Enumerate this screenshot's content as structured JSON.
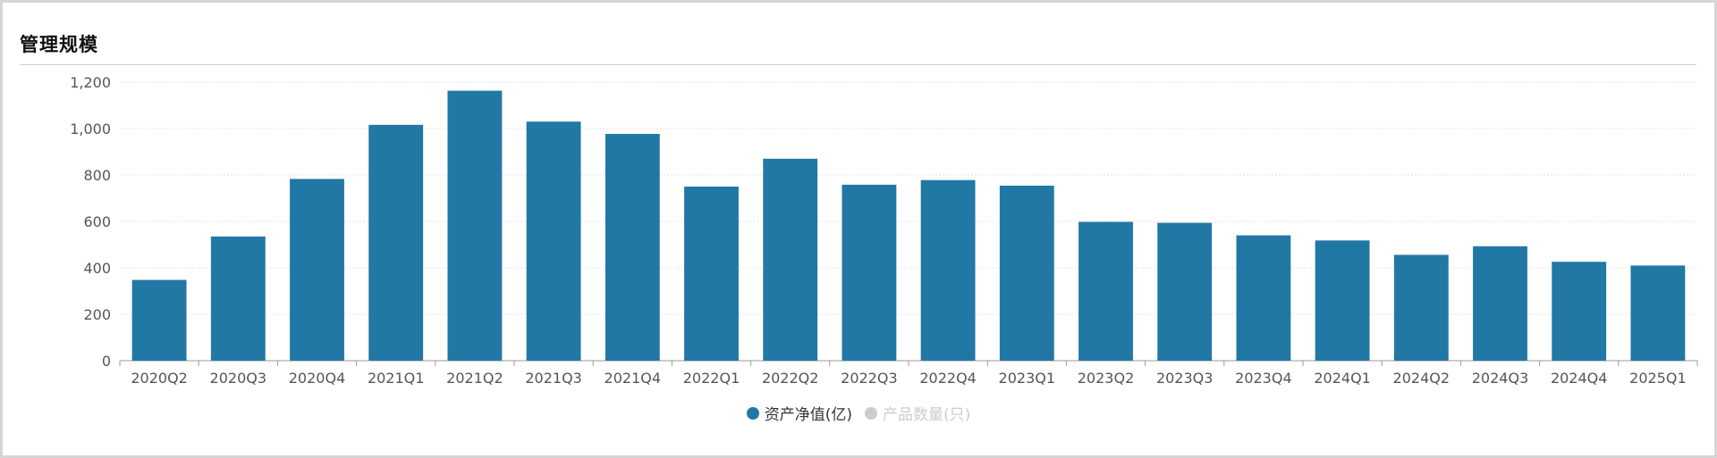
{
  "panel": {
    "title": "管理规模"
  },
  "colors": {
    "bar": "#2278a5",
    "grid": "#e4e4e4",
    "axis": "#999999",
    "tick_text": "#555555",
    "legend_active_text": "#333333",
    "legend_inactive": "#cccccc"
  },
  "legend": [
    {
      "label": "资产净值(亿)",
      "active": true
    },
    {
      "label": "产品数量(只)",
      "active": false
    }
  ],
  "chart_data": {
    "type": "bar",
    "categories": [
      "2020Q2",
      "2020Q3",
      "2020Q4",
      "2021Q1",
      "2021Q2",
      "2021Q3",
      "2021Q4",
      "2022Q1",
      "2022Q2",
      "2022Q3",
      "2022Q4",
      "2023Q1",
      "2023Q2",
      "2023Q3",
      "2023Q4",
      "2024Q1",
      "2024Q2",
      "2024Q3",
      "2024Q4",
      "2025Q1"
    ],
    "series": [
      {
        "name": "资产净值(亿)",
        "values": [
          348,
          535,
          783,
          1016,
          1163,
          1030,
          977,
          750,
          870,
          758,
          778,
          754,
          598,
          594,
          540,
          518,
          456,
          493,
          426,
          410
        ]
      }
    ],
    "yticks": [
      0,
      200,
      400,
      600,
      800,
      1000,
      1200
    ],
    "ytick_labels": [
      "0",
      "200",
      "400",
      "600",
      "800",
      "1,000",
      "1,200"
    ],
    "ylim": [
      0,
      1200
    ],
    "grid": true,
    "legend_position": "bottom-center"
  }
}
